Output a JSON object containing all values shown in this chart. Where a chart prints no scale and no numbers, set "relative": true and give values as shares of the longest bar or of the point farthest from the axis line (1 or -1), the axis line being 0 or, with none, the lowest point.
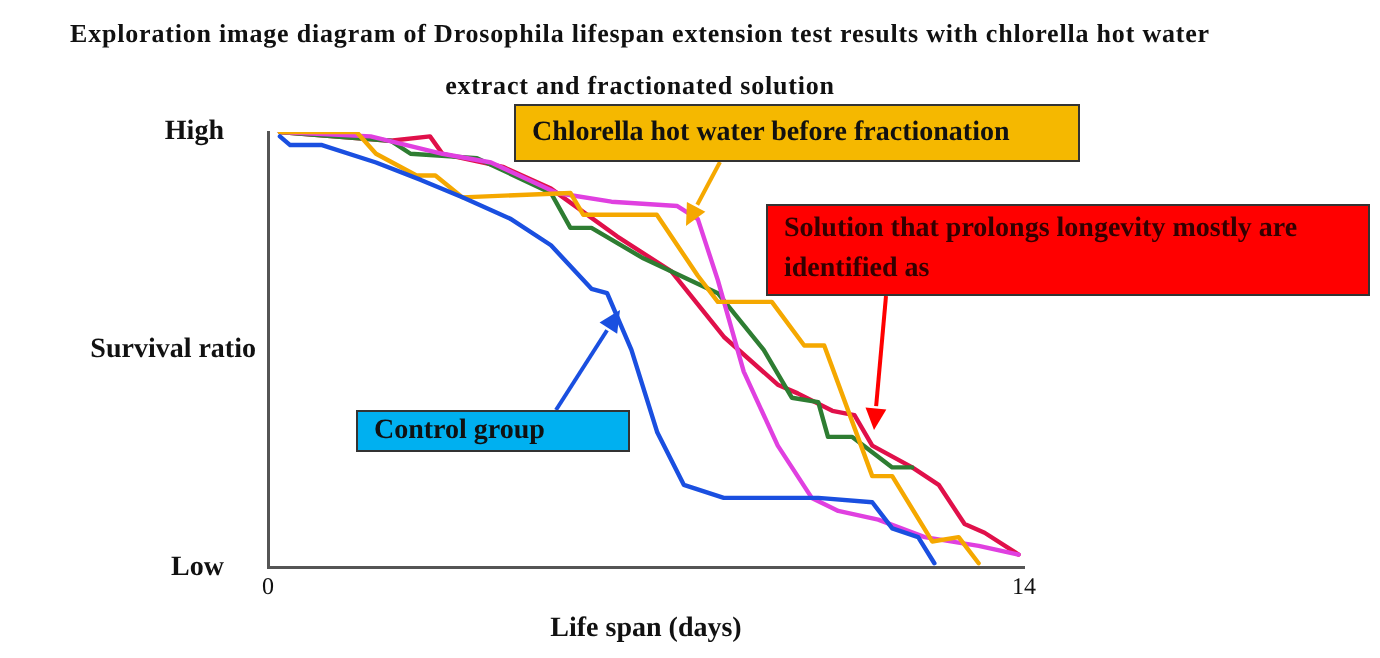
{
  "chart_data": {
    "type": "line",
    "title": "Exploration image diagram of Drosophila lifespan extension test results with chlorella hot water extract and fractionated solution",
    "xlabel": "Life span (days)",
    "ylabel": "Survival ratio",
    "xlim": [
      0,
      14
    ],
    "xticks": [
      0,
      14
    ],
    "relative": true,
    "grid": false,
    "legend": false,
    "marker": "none",
    "line_style": "solid",
    "series": [
      {
        "color": "#1a4fe0",
        "x": [
          0.22,
          0.41,
          1.0,
          2.0,
          2.83,
          3.6,
          4.5,
          5.24,
          5.99,
          6.28,
          6.73,
          7.21,
          7.7,
          8.44,
          10.19,
          11.19,
          11.56,
          12.04,
          12.34
        ],
        "values": [
          0.99,
          0.97,
          0.97,
          0.93,
          0.89,
          0.85,
          0.8,
          0.74,
          0.64,
          0.63,
          0.5,
          0.31,
          0.19,
          0.16,
          0.16,
          0.15,
          0.09,
          0.07,
          0.01
        ]
      },
      {
        "color": "#f5a800",
        "x": [
          0.22,
          1.64,
          2.0,
          2.75,
          3.1,
          3.6,
          5.6,
          5.84,
          7.2,
          7.96,
          8.33,
          9.33,
          9.93,
          10.3,
          11.19,
          11.56,
          12.3,
          12.79,
          13.16
        ],
        "values": [
          1.0,
          1.0,
          0.95,
          0.9,
          0.9,
          0.85,
          0.86,
          0.81,
          0.81,
          0.67,
          0.61,
          0.61,
          0.51,
          0.51,
          0.21,
          0.21,
          0.06,
          0.07,
          0.01
        ]
      },
      {
        "color": "#e040e0",
        "x": [
          0.22,
          1.9,
          3.23,
          4.13,
          5.35,
          6.36,
          7.58,
          7.96,
          8.33,
          8.81,
          9.44,
          10.07,
          10.56,
          11.3,
          12.16,
          13.16,
          13.9
        ],
        "values": [
          1.0,
          0.99,
          0.95,
          0.93,
          0.86,
          0.84,
          0.83,
          0.8,
          0.66,
          0.45,
          0.28,
          0.16,
          0.13,
          0.11,
          0.07,
          0.05,
          0.03
        ]
      },
      {
        "color": "#2e7d32",
        "x": [
          0.22,
          2.27,
          2.64,
          3.87,
          5.24,
          5.6,
          5.99,
          6.95,
          8.33,
          9.18,
          9.7,
          10.19,
          10.37,
          10.82,
          11.56,
          11.93
        ],
        "values": [
          1.0,
          0.98,
          0.95,
          0.94,
          0.86,
          0.78,
          0.78,
          0.71,
          0.63,
          0.5,
          0.39,
          0.38,
          0.3,
          0.3,
          0.23,
          0.23
        ]
      },
      {
        "color": "#e0104a",
        "x": [
          0.22,
          2.27,
          3.0,
          3.23,
          4.35,
          5.24,
          6.47,
          7.47,
          8.44,
          9.44,
          9.81,
          10.45,
          10.86,
          11.19,
          11.93,
          12.42,
          12.9,
          13.27,
          13.9
        ],
        "values": [
          1.0,
          0.98,
          0.99,
          0.95,
          0.92,
          0.87,
          0.76,
          0.68,
          0.53,
          0.42,
          0.4,
          0.36,
          0.35,
          0.28,
          0.23,
          0.19,
          0.1,
          0.08,
          0.03
        ]
      }
    ],
    "annotations": [
      "Chlorella hot water before fractionation",
      "Solution that prolongs longevity mostly are identified as",
      "Control group",
      "High",
      "Low"
    ]
  }
}
